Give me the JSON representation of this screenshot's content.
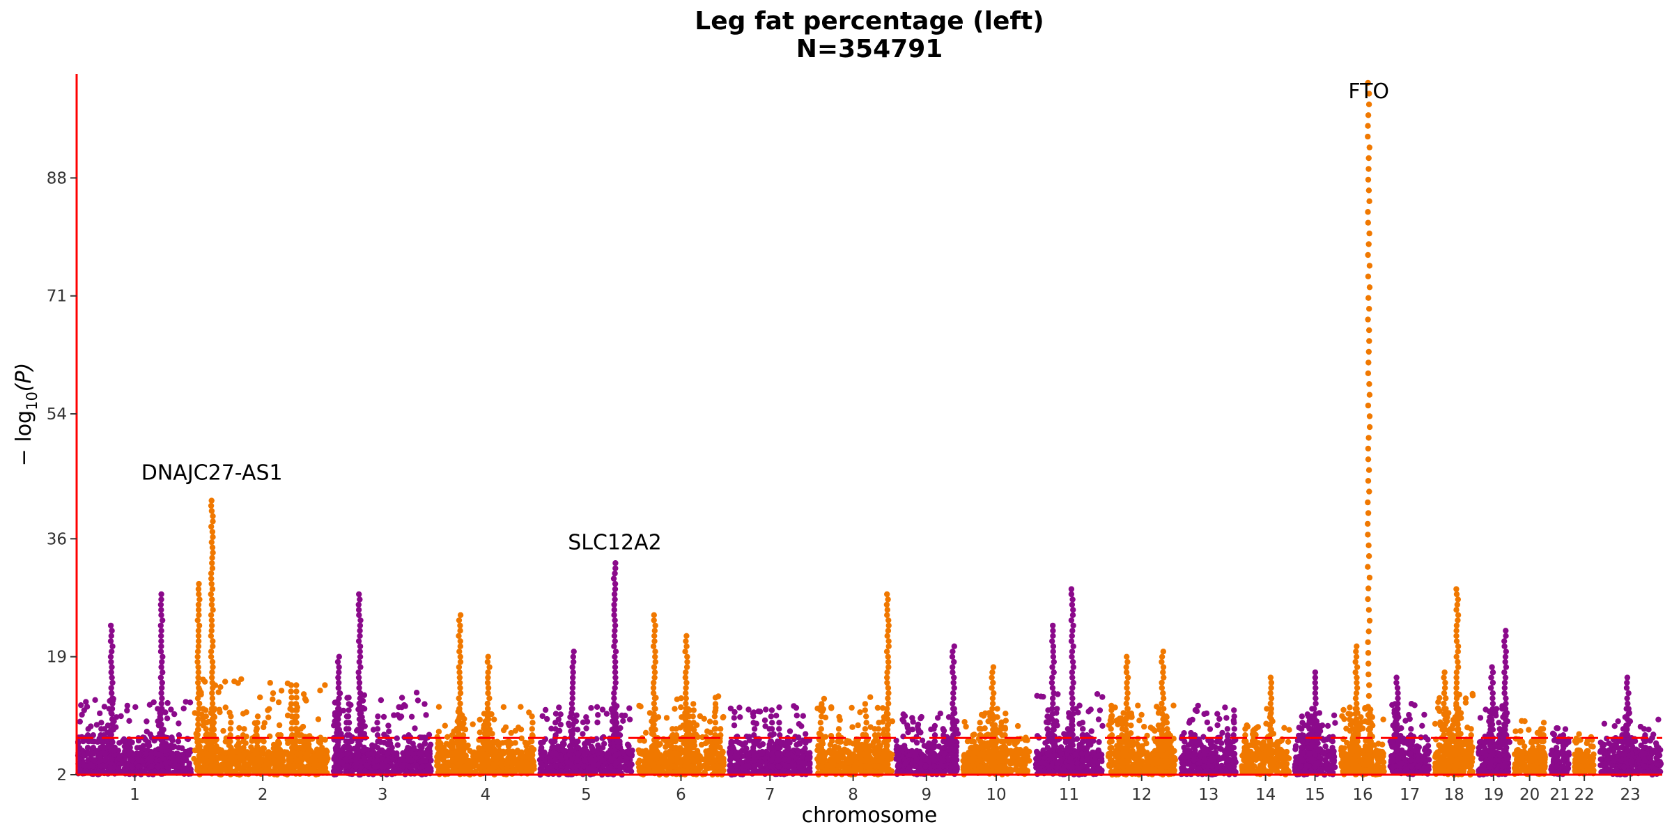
{
  "chart_data": {
    "type": "scatter",
    "title": "Leg fat percentage (left)",
    "subtitle": "N=354791",
    "xlabel": "chromosome",
    "ylabel_prefix": "− log",
    "ylabel_sub": "10",
    "ylabel_suffix": "(P)",
    "ylim": [
      2,
      103
    ],
    "yticks": [
      "2",
      "19",
      "36",
      "54",
      "71",
      "88"
    ],
    "threshold": 7.3,
    "grid": false,
    "legend": "none",
    "colors": {
      "odd": "#8b0a8b",
      "even": "#f07800",
      "threshold": "#ff0000",
      "axis": "#ff0000"
    },
    "chromosomes": [
      {
        "label": "1",
        "max": 13
      },
      {
        "label": "2",
        "max": 16
      },
      {
        "label": "3",
        "max": 14
      },
      {
        "label": "4",
        "max": 12
      },
      {
        "label": "5",
        "max": 12
      },
      {
        "label": "6",
        "max": 14
      },
      {
        "label": "7",
        "max": 12
      },
      {
        "label": "8",
        "max": 14
      },
      {
        "label": "9",
        "max": 11
      },
      {
        "label": "10",
        "max": 11
      },
      {
        "label": "11",
        "max": 14
      },
      {
        "label": "12",
        "max": 12
      },
      {
        "label": "13",
        "max": 12
      },
      {
        "label": "14",
        "max": 10
      },
      {
        "label": "15",
        "max": 11
      },
      {
        "label": "16",
        "max": 12
      },
      {
        "label": "17",
        "max": 13
      },
      {
        "label": "18",
        "max": 14
      },
      {
        "label": "19",
        "max": 12
      },
      {
        "label": "20",
        "max": 10
      },
      {
        "label": "21",
        "max": 9
      },
      {
        "label": "22",
        "max": 8
      },
      {
        "label": "23",
        "max": 10
      }
    ],
    "peaks": [
      {
        "chr": 1,
        "pos": 0.3,
        "top": 24
      },
      {
        "chr": 1,
        "pos": 0.73,
        "top": 28
      },
      {
        "chr": 2,
        "pos": 0.02,
        "top": 30
      },
      {
        "chr": 2,
        "pos": 0.12,
        "top": 42
      },
      {
        "chr": 3,
        "pos": 0.06,
        "top": 19
      },
      {
        "chr": 3,
        "pos": 0.27,
        "top": 28
      },
      {
        "chr": 4,
        "pos": 0.24,
        "top": 25
      },
      {
        "chr": 4,
        "pos": 0.53,
        "top": 19
      },
      {
        "chr": 5,
        "pos": 0.36,
        "top": 20
      },
      {
        "chr": 5,
        "pos": 0.8,
        "top": 33
      },
      {
        "chr": 6,
        "pos": 0.2,
        "top": 25
      },
      {
        "chr": 6,
        "pos": 0.56,
        "top": 22
      },
      {
        "chr": 8,
        "pos": 0.95,
        "top": 28
      },
      {
        "chr": 9,
        "pos": 0.92,
        "top": 21
      },
      {
        "chr": 10,
        "pos": 0.45,
        "top": 18
      },
      {
        "chr": 11,
        "pos": 0.27,
        "top": 24
      },
      {
        "chr": 11,
        "pos": 0.55,
        "top": 29
      },
      {
        "chr": 12,
        "pos": 0.29,
        "top": 19
      },
      {
        "chr": 12,
        "pos": 0.8,
        "top": 20
      },
      {
        "chr": 14,
        "pos": 0.6,
        "top": 16
      },
      {
        "chr": 15,
        "pos": 0.5,
        "top": 17
      },
      {
        "chr": 16,
        "pos": 0.36,
        "top": 21
      },
      {
        "chr": 16,
        "pos": 0.63,
        "top": 103
      },
      {
        "chr": 17,
        "pos": 0.2,
        "top": 16
      },
      {
        "chr": 18,
        "pos": 0.27,
        "top": 17
      },
      {
        "chr": 18,
        "pos": 0.58,
        "top": 29
      },
      {
        "chr": 19,
        "pos": 0.45,
        "top": 18
      },
      {
        "chr": 19,
        "pos": 0.86,
        "top": 23
      },
      {
        "chr": 23,
        "pos": 0.46,
        "top": 16
      }
    ],
    "annotations": [
      {
        "label": "DNAJC27-AS1",
        "chr": 2,
        "pos": 0.12,
        "y": 44.5
      },
      {
        "label": "SLC12A2",
        "chr": 5,
        "pos": 0.8,
        "y": 34.5
      },
      {
        "label": "FTO",
        "chr": 16,
        "pos": 0.63,
        "y": 99.5
      }
    ]
  }
}
